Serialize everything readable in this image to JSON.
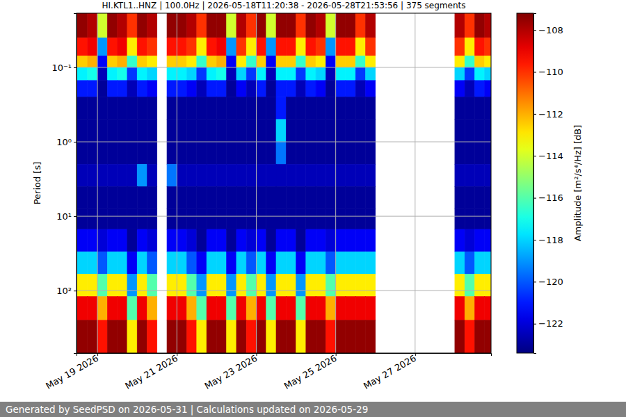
{
  "chart_data": {
    "type": "heatmap",
    "title": "HI.KTL1..HNZ | 100.0Hz | 2026-05-18T11:20:38 - 2026-05-28T21:53:56 | 375 segments",
    "y_label": "Period [s]",
    "footer": "Generated by SeedPSD on 2026-05-31 | Calculations updated on 2026-05-29",
    "log": "y",
    "grid": true,
    "xlim": [
      "2026-05-18T11:20:38",
      "2026-05-28T21:53:56"
    ],
    "xticks": [
      {
        "value": "2026-05-19T00:00:00",
        "label": "May 19 2026"
      },
      {
        "value": "2026-05-21T00:00:00",
        "label": "May 21 2026"
      },
      {
        "value": "2026-05-23T00:00:00",
        "label": "May 23 2026"
      },
      {
        "value": "2026-05-25T00:00:00",
        "label": "May 25 2026"
      },
      {
        "value": "2026-05-27T00:00:00",
        "label": "May 27 2026"
      }
    ],
    "ylim": [
      0.0187,
      690
    ],
    "yticks": [
      {
        "value": 0.1,
        "label": "10⁻¹"
      },
      {
        "value": 1,
        "label": "10⁰"
      },
      {
        "value": 10,
        "label": "10¹"
      },
      {
        "value": 100,
        "label": "10²"
      }
    ],
    "x_edges": [
      "2026-05-18T11:20:38",
      "2026-05-18T18:00:00",
      "2026-05-19T00:00:00",
      "2026-05-19T06:00:00",
      "2026-05-19T12:00:00",
      "2026-05-19T18:00:00",
      "2026-05-20T00:00:00",
      "2026-05-20T06:00:00",
      "2026-05-20T12:00:00",
      "2026-05-20T18:00:00",
      "2026-05-21T00:00:00",
      "2026-05-21T06:00:00",
      "2026-05-21T12:00:00",
      "2026-05-21T18:00:00",
      "2026-05-22T00:00:00",
      "2026-05-22T06:00:00",
      "2026-05-22T12:00:00",
      "2026-05-22T18:00:00",
      "2026-05-23T00:00:00",
      "2026-05-23T06:00:00",
      "2026-05-23T12:00:00",
      "2026-05-23T18:00:00",
      "2026-05-24T00:00:00",
      "2026-05-24T06:00:00",
      "2026-05-24T12:00:00",
      "2026-05-24T18:00:00",
      "2026-05-25T00:00:00",
      "2026-05-25T06:00:00",
      "2026-05-25T12:00:00",
      "2026-05-25T18:00:00",
      "2026-05-26T00:00:00",
      "2026-05-26T06:00:00",
      "2026-05-26T12:00:00",
      "2026-05-26T18:00:00",
      "2026-05-27T00:00:00",
      "2026-05-27T06:00:00",
      "2026-05-27T12:00:00",
      "2026-05-27T18:00:00",
      "2026-05-28T00:00:00",
      "2026-05-28T06:00:00",
      "2026-05-28T12:00:00",
      "2026-05-28T18:00:00",
      "2026-05-28T21:53:56"
    ],
    "y_edges": [
      0.0187,
      0.04,
      0.07,
      0.1,
      0.15,
      0.25,
      0.5,
      1,
      2,
      4,
      8,
      15,
      30,
      60,
      120,
      250,
      690
    ],
    "values": [
      [
        -107.5,
        -108,
        -114,
        -107.5,
        -108,
        -110,
        -107.5,
        -108,
        null,
        -107.5,
        -107.5,
        -108,
        -110,
        -107.5,
        -107.5,
        -114,
        -108,
        -110,
        -107.5,
        -114,
        -107.5,
        -107.5,
        -110,
        -107.5,
        -108,
        -114,
        -107.5,
        -107.5,
        -110,
        -108,
        null,
        null,
        null,
        null,
        null,
        null,
        null,
        null,
        -108,
        -110,
        -107.5,
        -108
      ],
      [
        -109.5,
        -109,
        -119,
        -109.5,
        -109,
        -113,
        -109.5,
        -110,
        null,
        -109.5,
        -109.5,
        -110,
        -113,
        -109.5,
        -109,
        -119,
        -110,
        -113,
        -109.5,
        -119,
        -109.5,
        -109.5,
        -113,
        -109.5,
        -110,
        -119,
        -109.5,
        -109.5,
        -113,
        -110,
        null,
        null,
        null,
        null,
        null,
        null,
        null,
        null,
        -110,
        -113,
        -109.5,
        -110
      ],
      [
        -112.5,
        -112,
        -121.5,
        -112.5,
        -112,
        -116.5,
        -112.5,
        -113,
        null,
        -112.5,
        -112.5,
        -113,
        -116.5,
        -112.5,
        -112,
        -121.5,
        -113,
        -116.5,
        -112.5,
        -121.5,
        -112.5,
        -112.5,
        -116.5,
        -112.5,
        -113,
        -121.5,
        -112.5,
        -112.5,
        -116.5,
        -113,
        null,
        null,
        null,
        null,
        null,
        null,
        null,
        null,
        -113,
        -116.5,
        -112.5,
        -113
      ],
      [
        -117.5,
        -117,
        -122.5,
        -117.5,
        -117,
        -120.5,
        -117.5,
        -118,
        null,
        -117.5,
        -117.5,
        -118,
        -120.5,
        -117.5,
        -117,
        -122.5,
        -118,
        -120.5,
        -117.5,
        -122.5,
        -117.5,
        -117.5,
        -120.5,
        -117.5,
        -118,
        -122.5,
        -117.5,
        -117.5,
        -120.5,
        -118,
        null,
        null,
        null,
        null,
        null,
        null,
        null,
        null,
        -118,
        -120.5,
        -117.5,
        -118
      ],
      [
        -121,
        -121,
        -123,
        -121,
        -121,
        -122.5,
        -121,
        -121.5,
        null,
        -121,
        -121,
        -121.5,
        -122.5,
        -121,
        -121,
        -123,
        -121.5,
        -122.5,
        -121,
        -123,
        -121,
        -121,
        -122.5,
        -121,
        -121.5,
        -123,
        -121,
        -121,
        -122.5,
        -121.5,
        null,
        null,
        null,
        null,
        null,
        null,
        null,
        null,
        -121.5,
        -122.5,
        -121,
        -121.5
      ],
      [
        -123,
        -123,
        -123,
        -123,
        -123,
        -123,
        -123,
        -123,
        null,
        -123,
        -123,
        -123,
        -123,
        -123,
        -123,
        -123,
        -123,
        -123,
        -123,
        -123,
        -121,
        -123,
        -123,
        -123,
        -123,
        -123,
        -123,
        -123,
        -123,
        -123,
        null,
        null,
        null,
        null,
        null,
        null,
        null,
        null,
        -123,
        -123,
        -123,
        -123
      ],
      [
        -123,
        -123,
        -123,
        -123,
        -123,
        -123,
        -123,
        -123,
        null,
        -123,
        -123,
        -123,
        -123,
        -123,
        -123,
        -123,
        -123,
        -123,
        -123,
        -123,
        -118,
        -123,
        -123,
        -123,
        -123,
        -123,
        -123,
        -123,
        -123,
        -123,
        null,
        null,
        null,
        null,
        null,
        null,
        null,
        null,
        -123,
        -123,
        -123,
        -123
      ],
      [
        -123,
        -123,
        -123,
        -123,
        -123,
        -123,
        -123,
        -123,
        null,
        -123,
        -123,
        -123,
        -123,
        -123,
        -123,
        -123,
        -123,
        -123,
        -123,
        -123,
        -119.5,
        -123,
        -123,
        -123,
        -123,
        -123,
        -123,
        -123,
        -123,
        -123,
        null,
        null,
        null,
        null,
        null,
        null,
        null,
        null,
        -123,
        -123,
        -123,
        -123
      ],
      [
        -122.5,
        -122.5,
        -122.5,
        -122.5,
        -122.5,
        -122.5,
        -119,
        -122.5,
        null,
        -119.5,
        -122.5,
        -122.5,
        -122.5,
        -122.5,
        -122.5,
        -122.5,
        -122.5,
        -122.5,
        -122.5,
        -122.5,
        -122.5,
        -122.5,
        -122.5,
        -122.5,
        -122.5,
        -122.5,
        -122.5,
        -122.5,
        -122.5,
        -122.5,
        null,
        null,
        null,
        null,
        null,
        null,
        null,
        null,
        -122.5,
        -122.5,
        -122.5,
        -122.5
      ],
      [
        -123,
        -123,
        -123,
        -123,
        -123,
        -123,
        -123,
        -123,
        null,
        -123,
        -123,
        -123,
        -123,
        -123,
        -123,
        -123,
        -123,
        -123,
        -123,
        -123,
        -123,
        -123,
        -123,
        -123,
        -123,
        -123,
        -123,
        -123,
        -123,
        -123,
        null,
        null,
        null,
        null,
        null,
        null,
        null,
        null,
        -123,
        -123,
        -123,
        -123
      ],
      [
        -123,
        -123,
        -123,
        -123,
        -123,
        -123,
        -123,
        -123,
        null,
        -123,
        -123,
        -123,
        -123,
        -123,
        -123,
        -123,
        -123,
        -123,
        -123,
        -123,
        -123,
        -123,
        -123,
        -123,
        -123,
        -123,
        -123,
        -123,
        -123,
        -123,
        null,
        null,
        null,
        null,
        null,
        null,
        null,
        null,
        -123,
        -123,
        -123,
        -123
      ],
      [
        -121.5,
        -121.5,
        -122,
        -121.5,
        -121.5,
        -123,
        -121.5,
        -122,
        null,
        -121.5,
        -121.5,
        -122,
        -123,
        -121.5,
        -121.5,
        -123,
        -121.5,
        -122,
        -121.5,
        -123,
        -121.5,
        -121.5,
        -123,
        -121.5,
        -121.5,
        -122,
        -121.5,
        -121.5,
        -121.5,
        -121.5,
        null,
        null,
        null,
        null,
        null,
        null,
        null,
        null,
        -121.5,
        -122,
        -121.5,
        -121.5
      ],
      [
        -118,
        -118,
        -120,
        -118,
        -118,
        -121.5,
        -118,
        -120,
        null,
        -118,
        -118,
        -120,
        -121.5,
        -118,
        -118,
        -121.5,
        -118,
        -120,
        -118,
        -121.5,
        -118,
        -118,
        -121.5,
        -118,
        -118,
        -120,
        -118,
        -118,
        -118,
        -118,
        null,
        null,
        null,
        null,
        null,
        null,
        null,
        null,
        -118,
        -120,
        -118,
        -118
      ],
      [
        -113,
        -113,
        -116,
        -113,
        -113,
        -119,
        -113,
        -116,
        null,
        -113,
        -113,
        -116,
        -119,
        -113,
        -113,
        -119,
        -113,
        -116,
        -113,
        -119,
        -113,
        -113,
        -119,
        -113,
        -113,
        -116,
        -113,
        -113,
        -113,
        -113,
        null,
        null,
        null,
        null,
        null,
        null,
        null,
        null,
        -113,
        -116,
        -113,
        -113
      ],
      [
        -109,
        -109,
        -112,
        -109,
        -109,
        -116,
        -109,
        -112,
        null,
        -109,
        -109,
        -112,
        -116,
        -109,
        -109,
        -116,
        -109,
        -112,
        -109,
        -116,
        -109,
        -109,
        -116,
        -109,
        -109,
        -112,
        -109,
        -109,
        -109,
        -109,
        null,
        null,
        null,
        null,
        null,
        null,
        null,
        null,
        -109,
        -112,
        -109,
        -109
      ],
      [
        -107.5,
        -107.5,
        -109.5,
        -107.5,
        -107.5,
        -113,
        -107.5,
        -109.5,
        null,
        -107.5,
        -107.5,
        -109.5,
        -113,
        -107.5,
        -107.5,
        -113,
        -107.5,
        -109.5,
        -107.5,
        -113,
        -107.5,
        -107.5,
        -113,
        -107.5,
        -107.5,
        -109.5,
        -107.5,
        -107.5,
        -107.5,
        -107.5,
        null,
        null,
        null,
        null,
        null,
        null,
        null,
        null,
        -107.5,
        -109.5,
        -107.5,
        -107.5
      ]
    ],
    "colorbar": {
      "label": "Amplitude [m²/s⁴/Hz] [dB]",
      "lim": [
        -123.4,
        -107.2
      ],
      "ticks": [
        {
          "value": -108,
          "label": "−108"
        },
        {
          "value": -110,
          "label": "−110"
        },
        {
          "value": -112,
          "label": "−112"
        },
        {
          "value": -114,
          "label": "−114"
        },
        {
          "value": -116,
          "label": "−116"
        },
        {
          "value": -118,
          "label": "−118"
        },
        {
          "value": -120,
          "label": "−120"
        },
        {
          "value": -122,
          "label": "−122"
        }
      ]
    }
  }
}
